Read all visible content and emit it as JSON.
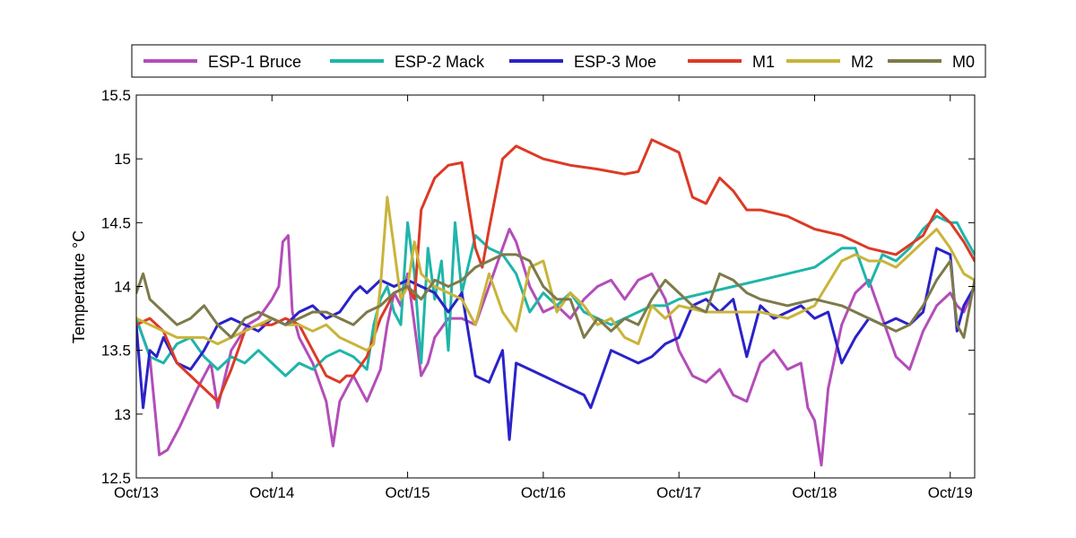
{
  "chart_data": {
    "type": "line",
    "title": "",
    "xlabel": "",
    "ylabel": "Temperature °C",
    "x_unit": "day",
    "xlim": [
      13,
      19.18
    ],
    "ylim": [
      12.5,
      15.5
    ],
    "x_ticks": [
      13,
      14,
      15,
      16,
      17,
      18,
      19
    ],
    "x_tick_labels": [
      "Oct/13",
      "Oct/14",
      "Oct/15",
      "Oct/16",
      "Oct/17",
      "Oct/18",
      "Oct/19"
    ],
    "y_ticks": [
      12.5,
      13,
      13.5,
      14,
      14.5,
      15,
      15.5
    ],
    "y_tick_labels": [
      "12.5",
      "13",
      "13.5",
      "14",
      "14.5",
      "15",
      "15.5"
    ],
    "grid": false,
    "legend_position": "top",
    "series": [
      {
        "name": "ESP-1 Bruce",
        "color": "#b34db8",
        "x": [
          13.0,
          13.1,
          13.17,
          13.23,
          13.32,
          13.45,
          13.55,
          13.6,
          13.7,
          13.82,
          13.9,
          14.0,
          14.05,
          14.08,
          14.12,
          14.15,
          14.2,
          14.3,
          14.4,
          14.45,
          14.5,
          14.6,
          14.7,
          14.8,
          14.85,
          14.9,
          14.95,
          15.0,
          15.05,
          15.1,
          15.15,
          15.2,
          15.3,
          15.4,
          15.5,
          15.6,
          15.7,
          15.75,
          15.8,
          15.9,
          16.0,
          16.1,
          16.2,
          16.3,
          16.4,
          16.5,
          16.6,
          16.7,
          16.8,
          16.9,
          17.0,
          17.1,
          17.2,
          17.3,
          17.4,
          17.5,
          17.6,
          17.7,
          17.8,
          17.9,
          17.95,
          18.0,
          18.05,
          18.1,
          18.2,
          18.3,
          18.4,
          18.5,
          18.6,
          18.7,
          18.8,
          18.9,
          19.0,
          19.05,
          19.1,
          19.18
        ],
        "y": [
          13.75,
          13.45,
          12.68,
          12.72,
          12.9,
          13.2,
          13.4,
          13.05,
          13.5,
          13.7,
          13.75,
          13.9,
          14.0,
          14.35,
          14.4,
          13.8,
          13.6,
          13.4,
          13.1,
          12.75,
          13.1,
          13.3,
          13.1,
          13.35,
          13.7,
          13.95,
          13.85,
          14.1,
          13.7,
          13.3,
          13.4,
          13.6,
          13.75,
          13.75,
          13.7,
          14.0,
          14.3,
          14.45,
          14.35,
          14.0,
          13.8,
          13.85,
          13.75,
          13.9,
          14.0,
          14.05,
          13.9,
          14.05,
          14.1,
          13.9,
          13.5,
          13.3,
          13.25,
          13.35,
          13.15,
          13.1,
          13.4,
          13.5,
          13.35,
          13.4,
          13.05,
          12.95,
          12.6,
          13.2,
          13.7,
          13.95,
          14.05,
          13.75,
          13.45,
          13.35,
          13.65,
          13.85,
          13.95,
          13.85,
          13.8,
          14.0
        ]
      },
      {
        "name": "ESP-2 Mack",
        "color": "#1fb5a9",
        "x": [
          13.0,
          13.1,
          13.2,
          13.3,
          13.4,
          13.5,
          13.6,
          13.7,
          13.8,
          13.9,
          14.0,
          14.1,
          14.2,
          14.3,
          14.4,
          14.5,
          14.6,
          14.7,
          14.75,
          14.8,
          14.85,
          14.9,
          14.95,
          15.0,
          15.05,
          15.1,
          15.15,
          15.2,
          15.25,
          15.3,
          15.35,
          15.4,
          15.5,
          15.6,
          15.7,
          15.8,
          15.9,
          16.0,
          16.1,
          16.2,
          16.3,
          16.4,
          16.5,
          16.6,
          16.7,
          16.8,
          16.9,
          17.0,
          17.2,
          17.4,
          17.6,
          17.8,
          18.0,
          18.2,
          18.3,
          18.4,
          18.5,
          18.6,
          18.7,
          18.8,
          18.9,
          19.0,
          19.05,
          19.1,
          19.18
        ],
        "y": [
          13.75,
          13.45,
          13.4,
          13.55,
          13.6,
          13.45,
          13.35,
          13.45,
          13.4,
          13.5,
          13.4,
          13.3,
          13.4,
          13.35,
          13.45,
          13.5,
          13.45,
          13.35,
          13.7,
          13.9,
          14.0,
          13.8,
          13.7,
          14.5,
          14.1,
          13.4,
          14.3,
          13.9,
          14.2,
          13.5,
          14.5,
          13.95,
          14.4,
          14.3,
          14.25,
          14.1,
          13.8,
          13.95,
          13.85,
          13.95,
          13.8,
          13.75,
          13.7,
          13.75,
          13.8,
          13.85,
          13.85,
          13.9,
          13.95,
          14.0,
          14.05,
          14.1,
          14.15,
          14.3,
          14.3,
          14.0,
          14.25,
          14.2,
          14.3,
          14.45,
          14.55,
          14.5,
          14.5,
          14.4,
          14.25
        ]
      },
      {
        "name": "ESP-3 Moe",
        "color": "#2a22c8",
        "x": [
          13.0,
          13.05,
          13.1,
          13.15,
          13.2,
          13.3,
          13.4,
          13.5,
          13.6,
          13.7,
          13.8,
          13.9,
          14.0,
          14.1,
          14.2,
          14.3,
          14.4,
          14.5,
          14.6,
          14.65,
          14.7,
          14.8,
          14.9,
          15.0,
          15.1,
          15.2,
          15.3,
          15.4,
          15.5,
          15.6,
          15.7,
          15.75,
          15.8,
          15.9,
          16.0,
          16.1,
          16.2,
          16.3,
          16.35,
          16.4,
          16.5,
          16.6,
          16.7,
          16.8,
          16.9,
          17.0,
          17.1,
          17.2,
          17.3,
          17.4,
          17.5,
          17.6,
          17.7,
          17.8,
          17.9,
          18.0,
          18.1,
          18.2,
          18.3,
          18.4,
          18.5,
          18.6,
          18.7,
          18.8,
          18.9,
          19.0,
          19.05,
          19.1,
          19.18
        ],
        "y": [
          13.7,
          13.05,
          13.5,
          13.45,
          13.6,
          13.4,
          13.35,
          13.5,
          13.7,
          13.75,
          13.7,
          13.65,
          13.75,
          13.7,
          13.8,
          13.85,
          13.75,
          13.8,
          13.95,
          14.0,
          13.95,
          14.05,
          14.0,
          14.05,
          14.0,
          13.95,
          13.8,
          13.95,
          13.3,
          13.25,
          13.5,
          12.8,
          13.4,
          13.35,
          13.3,
          13.25,
          13.2,
          13.15,
          13.05,
          13.2,
          13.5,
          13.45,
          13.4,
          13.45,
          13.55,
          13.6,
          13.85,
          13.9,
          13.8,
          13.9,
          13.45,
          13.85,
          13.75,
          13.8,
          13.85,
          13.75,
          13.8,
          13.4,
          13.6,
          13.75,
          13.7,
          13.75,
          13.7,
          13.8,
          14.3,
          14.25,
          13.65,
          13.85,
          14.0
        ]
      },
      {
        "name": "M1",
        "color": "#dc3a26",
        "x": [
          13.0,
          13.1,
          13.2,
          13.3,
          13.4,
          13.5,
          13.55,
          13.6,
          13.7,
          13.8,
          13.9,
          14.0,
          14.1,
          14.2,
          14.3,
          14.4,
          14.5,
          14.55,
          14.6,
          14.7,
          14.8,
          14.9,
          15.0,
          15.05,
          15.1,
          15.2,
          15.3,
          15.4,
          15.5,
          15.55,
          15.6,
          15.7,
          15.8,
          16.0,
          16.2,
          16.4,
          16.6,
          16.7,
          16.8,
          16.9,
          17.0,
          17.1,
          17.2,
          17.3,
          17.4,
          17.5,
          17.6,
          17.8,
          18.0,
          18.2,
          18.4,
          18.6,
          18.8,
          18.9,
          19.0,
          19.1,
          19.18
        ],
        "y": [
          13.7,
          13.75,
          13.65,
          13.4,
          13.3,
          13.2,
          13.15,
          13.1,
          13.35,
          13.65,
          13.7,
          13.7,
          13.75,
          13.7,
          13.5,
          13.3,
          13.25,
          13.3,
          13.3,
          13.45,
          13.75,
          13.95,
          14.0,
          13.9,
          14.6,
          14.85,
          14.95,
          14.97,
          14.3,
          14.15,
          14.45,
          15.0,
          15.1,
          15.0,
          14.95,
          14.92,
          14.88,
          14.9,
          15.15,
          15.1,
          15.05,
          14.7,
          14.65,
          14.85,
          14.75,
          14.6,
          14.6,
          14.55,
          14.45,
          14.4,
          14.3,
          14.25,
          14.4,
          14.6,
          14.5,
          14.35,
          14.2
        ]
      },
      {
        "name": "M2",
        "color": "#c9b43a",
        "x": [
          13.0,
          13.1,
          13.2,
          13.3,
          13.4,
          13.5,
          13.6,
          13.7,
          13.8,
          13.9,
          14.0,
          14.1,
          14.2,
          14.3,
          14.4,
          14.5,
          14.6,
          14.7,
          14.75,
          14.8,
          14.85,
          14.9,
          14.95,
          15.0,
          15.05,
          15.1,
          15.2,
          15.3,
          15.4,
          15.5,
          15.6,
          15.7,
          15.8,
          15.9,
          16.0,
          16.1,
          16.2,
          16.3,
          16.4,
          16.5,
          16.6,
          16.7,
          16.8,
          16.9,
          17.0,
          17.2,
          17.4,
          17.6,
          17.8,
          18.0,
          18.2,
          18.3,
          18.4,
          18.5,
          18.6,
          18.7,
          18.8,
          18.9,
          19.0,
          19.1,
          19.18
        ],
        "y": [
          13.75,
          13.7,
          13.65,
          13.6,
          13.6,
          13.6,
          13.55,
          13.6,
          13.65,
          13.7,
          13.75,
          13.7,
          13.7,
          13.65,
          13.7,
          13.6,
          13.55,
          13.5,
          13.55,
          14.0,
          14.7,
          14.3,
          13.9,
          14.0,
          14.35,
          14.1,
          14.0,
          13.95,
          13.9,
          13.7,
          14.1,
          13.8,
          13.65,
          14.15,
          14.2,
          13.8,
          13.95,
          13.85,
          13.7,
          13.75,
          13.6,
          13.55,
          13.85,
          13.75,
          13.85,
          13.8,
          13.8,
          13.8,
          13.75,
          13.85,
          14.2,
          14.25,
          14.2,
          14.2,
          14.15,
          14.25,
          14.35,
          14.45,
          14.3,
          14.1,
          14.05
        ]
      },
      {
        "name": "M0",
        "color": "#7d7a4a",
        "x": [
          13.0,
          13.05,
          13.1,
          13.2,
          13.3,
          13.4,
          13.5,
          13.6,
          13.7,
          13.8,
          13.9,
          14.0,
          14.1,
          14.2,
          14.3,
          14.4,
          14.5,
          14.6,
          14.7,
          14.8,
          14.9,
          15.0,
          15.1,
          15.2,
          15.3,
          15.4,
          15.5,
          15.6,
          15.7,
          15.8,
          15.9,
          16.0,
          16.1,
          16.2,
          16.3,
          16.4,
          16.5,
          16.6,
          16.7,
          16.8,
          16.9,
          17.0,
          17.1,
          17.2,
          17.3,
          17.4,
          17.5,
          17.6,
          17.8,
          18.0,
          18.2,
          18.3,
          18.4,
          18.5,
          18.6,
          18.7,
          18.8,
          18.9,
          19.0,
          19.05,
          19.1,
          19.18
        ],
        "y": [
          13.95,
          14.1,
          13.9,
          13.8,
          13.7,
          13.75,
          13.85,
          13.7,
          13.6,
          13.75,
          13.8,
          13.75,
          13.7,
          13.75,
          13.8,
          13.8,
          13.75,
          13.7,
          13.8,
          13.85,
          13.95,
          14.0,
          13.9,
          14.05,
          14.0,
          14.05,
          14.15,
          14.2,
          14.25,
          14.25,
          14.2,
          14.0,
          13.9,
          13.9,
          13.6,
          13.75,
          13.65,
          13.75,
          13.7,
          13.9,
          14.05,
          13.95,
          13.85,
          13.8,
          14.1,
          14.05,
          13.95,
          13.9,
          13.85,
          13.9,
          13.85,
          13.8,
          13.75,
          13.7,
          13.65,
          13.7,
          13.85,
          14.05,
          14.2,
          13.7,
          13.6,
          14.05
        ]
      }
    ]
  }
}
